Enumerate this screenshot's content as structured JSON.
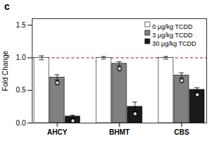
{
  "chart_data": {
    "type": "bar",
    "title": "c",
    "ylabel": "Fold Change",
    "categories": [
      "AHCY",
      "BHMT",
      "CBS"
    ],
    "series": [
      {
        "name": "0 μg/kg TCDD",
        "color": "white",
        "values": [
          1.0,
          1.0,
          1.0
        ],
        "errors": [
          0.03,
          0.02,
          0.02
        ],
        "significant": [
          false,
          false,
          false
        ]
      },
      {
        "name": "3 μg/kg TCDD",
        "color": "#808080",
        "values": [
          0.7,
          0.91,
          0.73
        ],
        "errors": [
          0.04,
          0.03,
          0.04
        ],
        "significant": [
          true,
          true,
          true
        ]
      },
      {
        "name": "30 μg/kg TCDD",
        "color": "#1a1a1a",
        "values": [
          0.1,
          0.25,
          0.51
        ],
        "errors": [
          0.02,
          0.07,
          0.03
        ],
        "significant": [
          true,
          true,
          true
        ]
      }
    ],
    "edgecolor": "black",
    "ylim": [
      0.0,
      1.6
    ],
    "yticks": [
      {
        "value": 0.0,
        "label": "0.0"
      },
      0.5,
      {
        "value": 1.0,
        "label": "1.0"
      },
      1.5
    ],
    "legend": "upper right",
    "grid": false,
    "annotation": "*",
    "reference_line": {
      "y": 1.0,
      "color": "#cc0000",
      "line_style": "dashed"
    }
  }
}
